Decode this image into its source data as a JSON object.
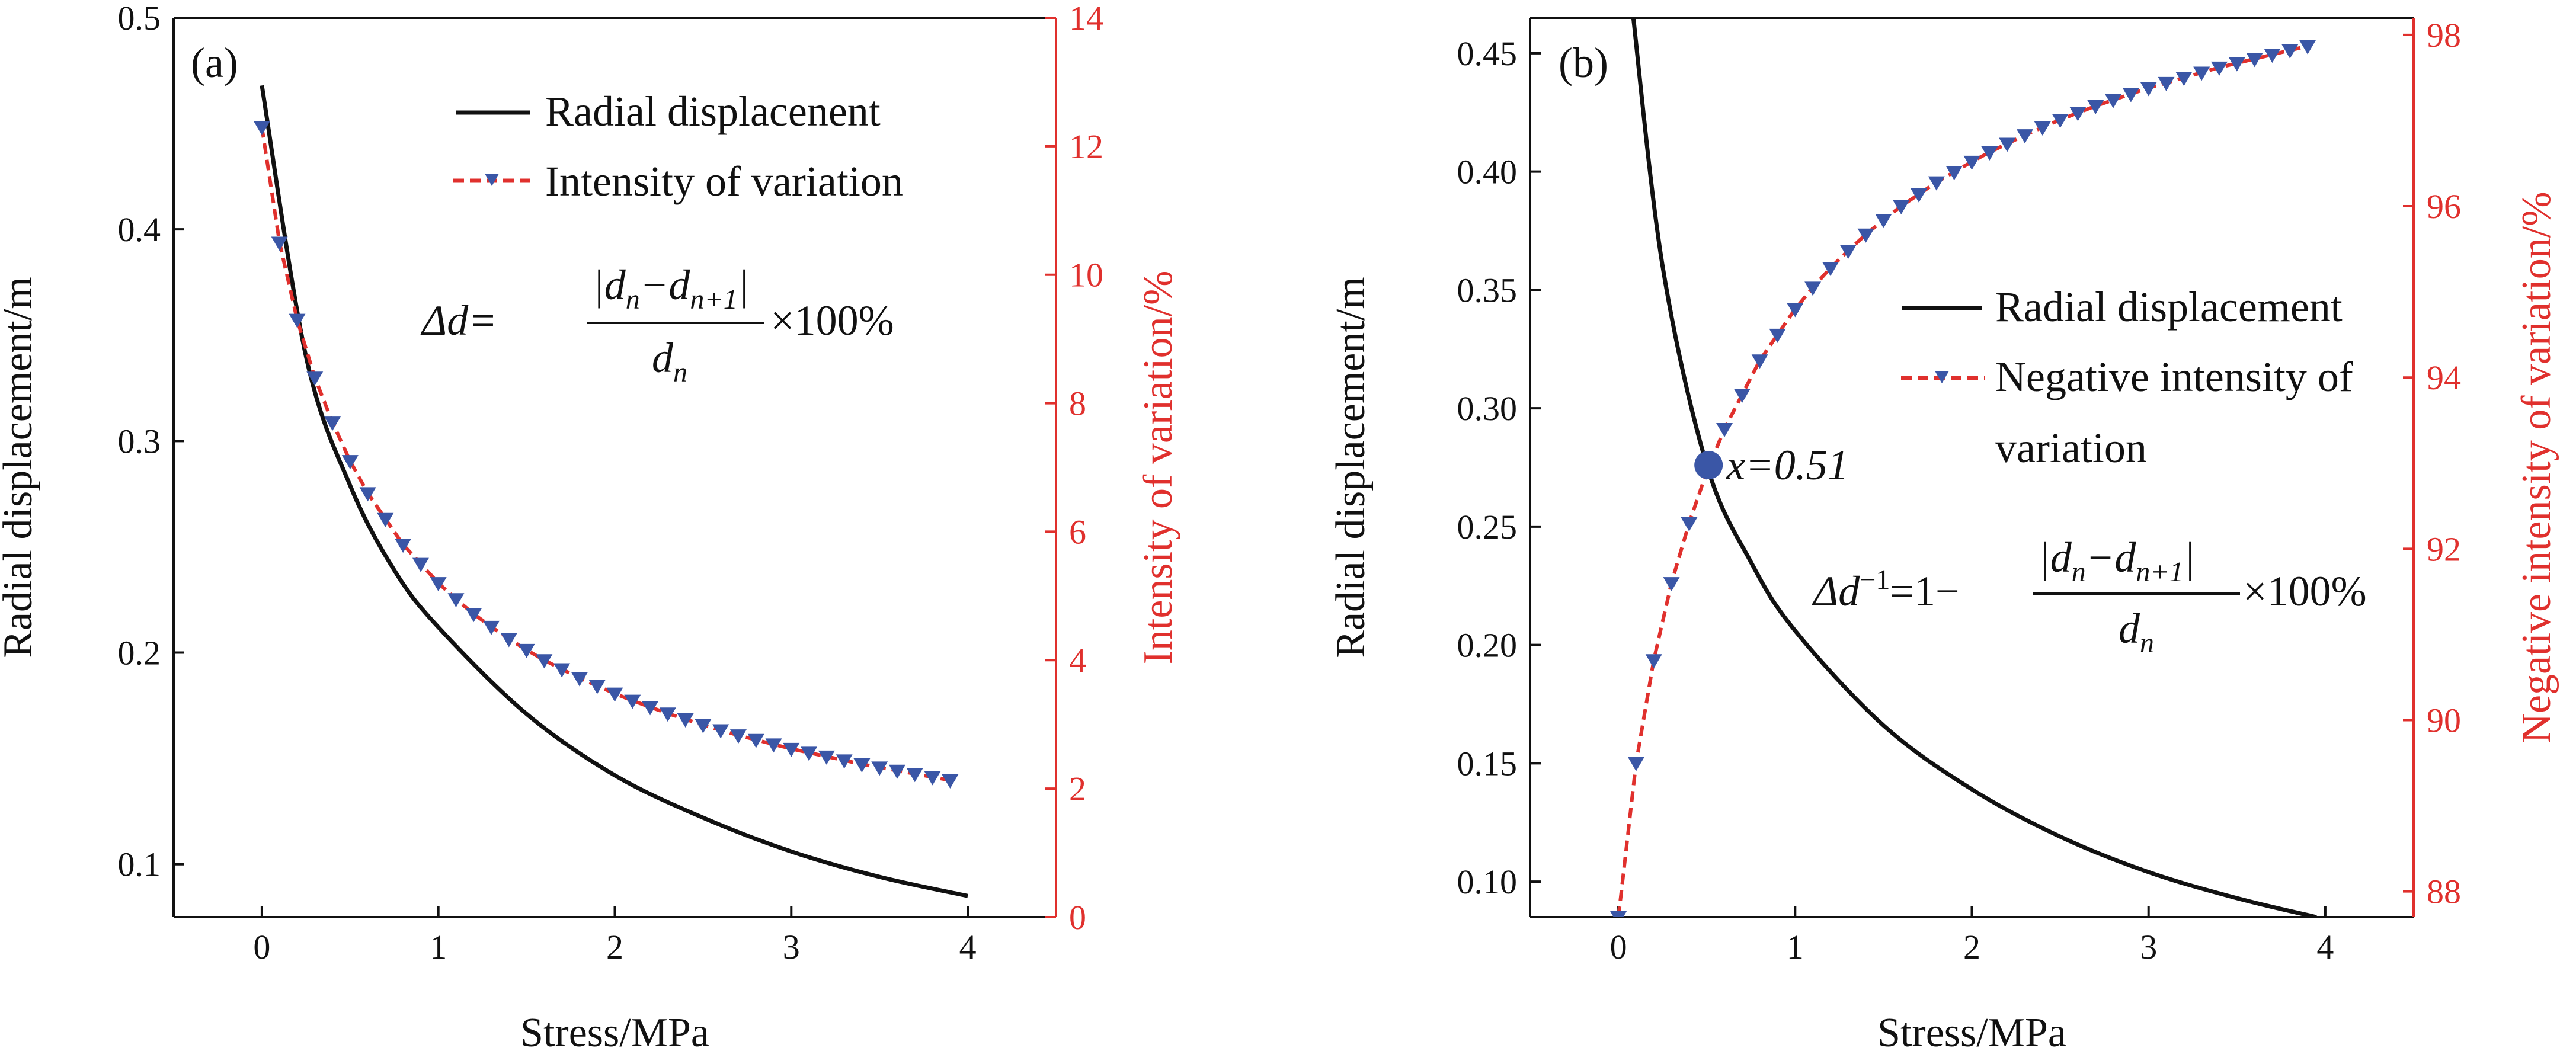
{
  "colors": {
    "black": "#111111",
    "red": "#e0302d",
    "blue": "#3a56a6"
  },
  "chart_data": [
    {
      "type": "line",
      "panel_label": "(a)",
      "xlabel": "Stress/MPa",
      "ylabel": "Radial displacement/m",
      "y2label": "Intensity of variation/%",
      "xlim": [
        -0.5,
        4.5
      ],
      "ylim": [
        0.075,
        0.5
      ],
      "y2lim": [
        0,
        14
      ],
      "xticks": [
        0,
        1,
        2,
        3,
        4
      ],
      "yticks": [
        0.1,
        0.2,
        0.3,
        0.4,
        0.5
      ],
      "y2ticks": [
        0,
        2,
        4,
        6,
        8,
        10,
        12,
        14
      ],
      "legend": [
        "Radial displacenent",
        "Intensity of variation"
      ],
      "formula": {
        "lhs": "Δd=",
        "numerator": "|d",
        "num_sub1": "n",
        "num_mid": "−d",
        "num_sub2": "n+1",
        "num_end": "|",
        "denominator": "d",
        "den_sub": "n",
        "tail": "×100%"
      },
      "series": [
        {
          "name": "Radial displacenent",
          "axis": "left",
          "x": [
            0,
            0.25,
            0.5,
            0.75,
            1,
            1.5,
            2,
            2.5,
            3,
            3.5,
            4
          ],
          "y": [
            0.468,
            0.34,
            0.279,
            0.239,
            0.212,
            0.171,
            0.142,
            0.122,
            0.106,
            0.094,
            0.085
          ]
        },
        {
          "name": "Intensity of variation",
          "axis": "right",
          "x": [
            0,
            0.1,
            0.2,
            0.3,
            0.4,
            0.5,
            0.6,
            0.7,
            0.8,
            0.9,
            1.0,
            1.1,
            1.2,
            1.3,
            1.4,
            1.5,
            1.6,
            1.7,
            1.8,
            1.9,
            2.0,
            2.1,
            2.2,
            2.3,
            2.4,
            2.5,
            2.6,
            2.7,
            2.8,
            2.9,
            3.0,
            3.1,
            3.2,
            3.3,
            3.4,
            3.5,
            3.6,
            3.7,
            3.8,
            3.9
          ],
          "y": [
            12.3,
            10.5,
            9.3,
            8.4,
            7.7,
            7.1,
            6.6,
            6.2,
            5.8,
            5.5,
            5.2,
            4.95,
            4.72,
            4.52,
            4.33,
            4.16,
            4.0,
            3.86,
            3.72,
            3.6,
            3.48,
            3.37,
            3.27,
            3.17,
            3.08,
            2.99,
            2.91,
            2.83,
            2.76,
            2.69,
            2.62,
            2.56,
            2.5,
            2.44,
            2.38,
            2.33,
            2.28,
            2.23,
            2.18,
            2.13
          ]
        }
      ]
    },
    {
      "type": "line",
      "panel_label": "(b)",
      "xlabel": "Stress/MPa",
      "ylabel": "Radial displacement/m",
      "y2label": "Negative intensity of variation/%",
      "xlim": [
        -0.5,
        4.5
      ],
      "ylim": [
        0.085,
        0.465
      ],
      "y2lim": [
        87.7,
        98.2
      ],
      "xticks": [
        0,
        1,
        2,
        3,
        4
      ],
      "yticks": [
        0.1,
        0.15,
        0.2,
        0.25,
        0.3,
        0.35,
        0.4,
        0.45
      ],
      "ytick_labels": [
        "0.10",
        "0.15",
        "0.20",
        "0.25",
        "0.30",
        "0.35",
        "0.40",
        "0.45"
      ],
      "y2ticks": [
        88,
        90,
        92,
        94,
        96,
        98
      ],
      "legend": [
        "Radial displacement",
        "Negative intensity of",
        "variation"
      ],
      "intersection": {
        "x": 0.51,
        "y": 0.276,
        "label": "x=0.51"
      },
      "formula": {
        "lhs": "Δd",
        "sup": "−1",
        "eq": "=1−",
        "numerator": "|d",
        "num_sub1": "n",
        "num_mid": "−d",
        "num_sub2": "n+1",
        "num_end": "|",
        "denominator": "d",
        "den_sub": "n",
        "tail": "×100%"
      },
      "series": [
        {
          "name": "Radial displacement",
          "axis": "left",
          "x": [
            0.08,
            0.25,
            0.5,
            0.75,
            1,
            1.5,
            2,
            2.5,
            3,
            3.5,
            3.95
          ],
          "y": [
            0.468,
            0.36,
            0.276,
            0.235,
            0.206,
            0.166,
            0.139,
            0.119,
            0.104,
            0.093,
            0.085
          ]
        },
        {
          "name": "Negative intensity of variation",
          "axis": "right",
          "x": [
            0,
            0.1,
            0.2,
            0.3,
            0.4,
            0.5,
            0.6,
            0.7,
            0.8,
            0.9,
            1.0,
            1.1,
            1.2,
            1.3,
            1.4,
            1.5,
            1.6,
            1.7,
            1.8,
            1.9,
            2.0,
            2.1,
            2.2,
            2.3,
            2.4,
            2.5,
            2.6,
            2.7,
            2.8,
            2.9,
            3.0,
            3.1,
            3.2,
            3.3,
            3.4,
            3.5,
            3.6,
            3.7,
            3.8,
            3.9
          ],
          "y": [
            87.7,
            89.5,
            90.7,
            91.6,
            92.3,
            92.9,
            93.4,
            93.8,
            94.2,
            94.5,
            94.8,
            95.05,
            95.28,
            95.48,
            95.67,
            95.84,
            96.0,
            96.14,
            96.28,
            96.4,
            96.52,
            96.63,
            96.73,
            96.83,
            96.92,
            97.01,
            97.09,
            97.17,
            97.24,
            97.31,
            97.38,
            97.44,
            97.5,
            97.56,
            97.62,
            97.67,
            97.72,
            97.77,
            97.82,
            97.87
          ]
        }
      ]
    }
  ]
}
